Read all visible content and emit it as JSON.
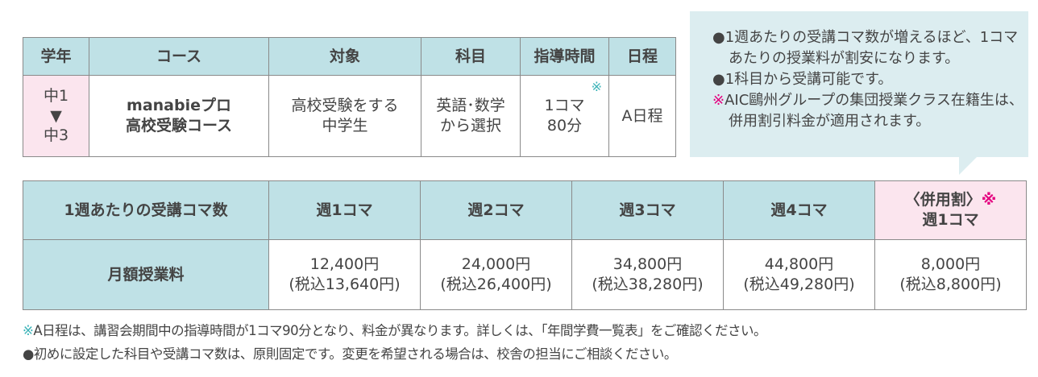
{
  "course_table": {
    "headers": [
      "学年",
      "コース",
      "対象",
      "科目",
      "指導時間",
      "日程"
    ],
    "grade": {
      "from": "中1",
      "arrow": "▼",
      "to": "中3"
    },
    "course": [
      "manabieプロ",
      "高校受験コース"
    ],
    "target": [
      "高校受験をする",
      "中学生"
    ],
    "subject": [
      "英語･数学",
      "から選択"
    ],
    "time": [
      "1コマ",
      "80分"
    ],
    "time_mark": "※",
    "schedule": "A日程"
  },
  "callout": {
    "items": [
      {
        "bullet": "●",
        "text": "1週あたりの受講コマ数が増えるほど、1コマあたりの授業料が割安になります。"
      },
      {
        "bullet": "●",
        "text": "1科目から受講可能です。"
      },
      {
        "bullet": "※",
        "text": "AIC鷗州グループの集団授業クラス在籍生は、併用割引料金が適用されます。"
      }
    ]
  },
  "price_table": {
    "row_header": "1週あたりの受講コマ数",
    "columns": [
      "週1コマ",
      "週2コマ",
      "週3コマ",
      "週4コマ"
    ],
    "special_column": {
      "line1": "〈併用割〉",
      "mark": "※",
      "line2": "週1コマ"
    },
    "fee_label": "月額授業料",
    "fees": [
      {
        "price": "12,400円",
        "tax": "(税込13,640円)"
      },
      {
        "price": "24,000円",
        "tax": "(税込26,400円)"
      },
      {
        "price": "34,800円",
        "tax": "(税込38,280円)"
      },
      {
        "price": "44,800円",
        "tax": "(税込49,280円)"
      },
      {
        "price": "8,000円",
        "tax": "(税込8,800円)"
      }
    ]
  },
  "footnotes": [
    {
      "mark": "※",
      "text": "A日程は、講習会期間中の指導時間が1コマ90分となり、料金が異なります。詳しくは、「年間学費一覧表」をご確認ください。"
    },
    {
      "mark": "●",
      "text": "初めに設定した科目や受講コマ数は、原則固定です。変更を希望される場合は、校舎の担当にご相談ください。"
    }
  ],
  "colors": {
    "header_bg": "#bfe1e6",
    "pink_bg": "#fbe5ee",
    "callout_bg": "#dcedf0",
    "teal_mark": "#3bb3b8",
    "magenta_mark": "#e4007f"
  }
}
